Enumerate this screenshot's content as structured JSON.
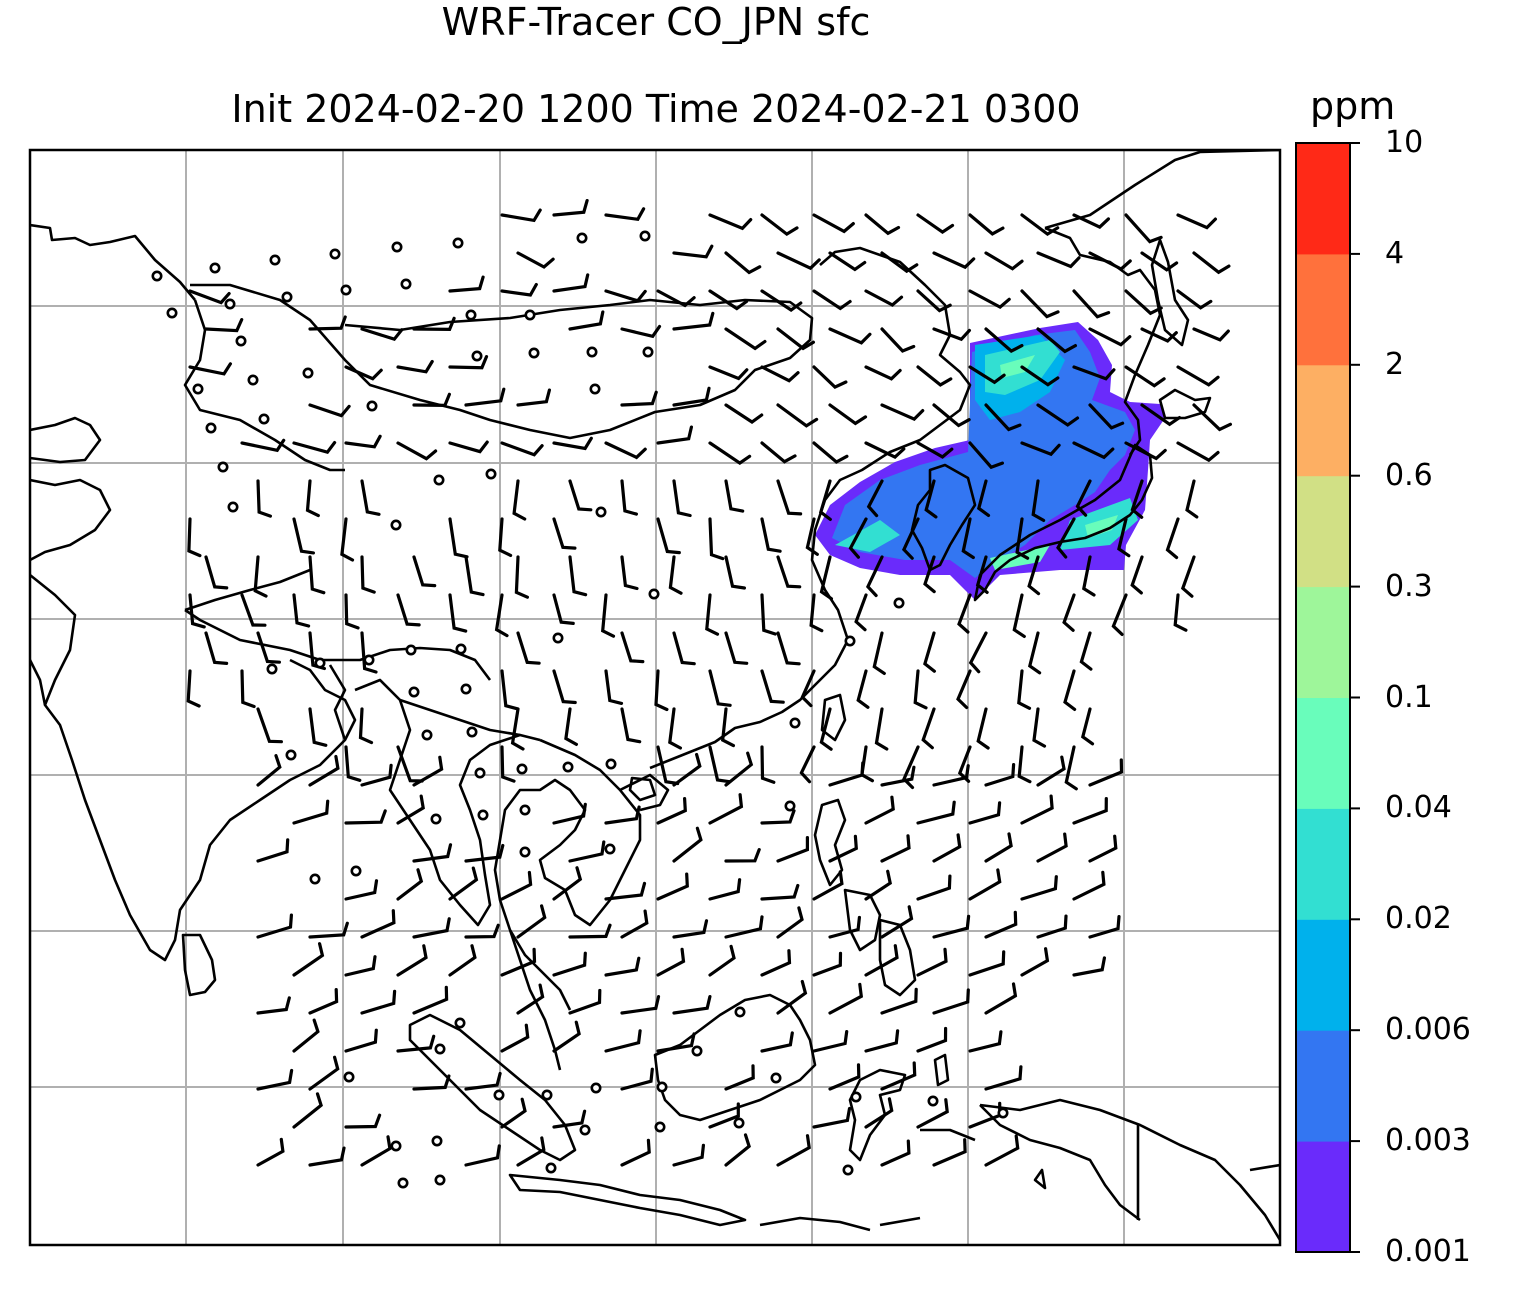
{
  "title": {
    "line1": "WRF-Tracer CO_JPN sfc",
    "line2": "Init 2024-02-20 1200 Time 2024-02-21 0300"
  },
  "colorbar": {
    "unit": "ppm",
    "levels": [
      "0.001",
      "0.003",
      "0.006",
      "0.02",
      "0.04",
      "0.1",
      "0.3",
      "0.6",
      "2",
      "4",
      "10"
    ],
    "colors": [
      "#6a2bfb",
      "#3376f2",
      "#00b1ec",
      "#32dfd2",
      "#69fdbb",
      "#9ef69a",
      "#d1e085",
      "#fdaf63",
      "#ff713c",
      "#ff2917"
    ]
  },
  "map": {
    "gridlines": true,
    "line_color": "#000000",
    "grid_color": "#b0b0b0",
    "plume_colors": {
      "outer": "#6a2bfb",
      "mid": "#3376f2",
      "inner": "#00b1ec",
      "edge": "#32dfd2",
      "light": "#69fdbb"
    }
  }
}
